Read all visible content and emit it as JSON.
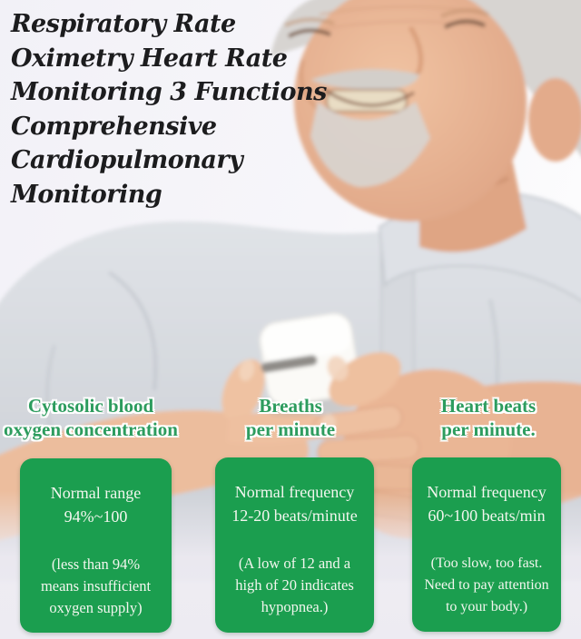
{
  "headline": {
    "lines": [
      "Respiratory Rate",
      "Oximetry Heart Rate",
      "Monitoring 3 Functions",
      "Comprehensive",
      "Cardiopulmonary",
      "Monitoring"
    ]
  },
  "metric_labels": [
    {
      "id": "blood-oxygen",
      "lines": [
        "Cytosolic blood",
        "oxygen concentration"
      ]
    },
    {
      "id": "respiratory-rate",
      "lines": [
        "Breaths",
        "per minute"
      ]
    },
    {
      "id": "heart-rate",
      "lines": [
        "Heart beats",
        "per minute."
      ]
    }
  ],
  "info_cards": [
    {
      "primary_lines": [
        "Normal range",
        "94%~100"
      ],
      "secondary_lines": [
        "(less than 94%",
        "means insufficient",
        "oxygen supply)"
      ]
    },
    {
      "primary_lines": [
        "Normal frequency",
        "12-20 beats/minute"
      ],
      "secondary_lines": [
        "(A low of 12 and a",
        "high of 20 indicates",
        "hypopnea.)"
      ]
    },
    {
      "primary_lines": [
        "Normal frequency",
        "60~100 beats/min"
      ],
      "secondary_lines": [
        "(Too slow, too fast.",
        "Need to pay attention",
        "to your body.)"
      ]
    }
  ],
  "photo": {
    "subject": "elderly man smiling, holding white fingertip pulse oximeter with both hands"
  },
  "colors": {
    "background": "#f3f2f7",
    "background_bottom": "#edebf2",
    "headline_text": "#1c1c1e",
    "label_green": "#2d9c5e",
    "label_outline": "#ffffff",
    "card_green": "#1b9e4f",
    "card_text": "#f2f6ee",
    "shirt_gray": "#d3d7dc",
    "skin_tone": "#e9b796",
    "device_white": "#fbfaf7"
  }
}
